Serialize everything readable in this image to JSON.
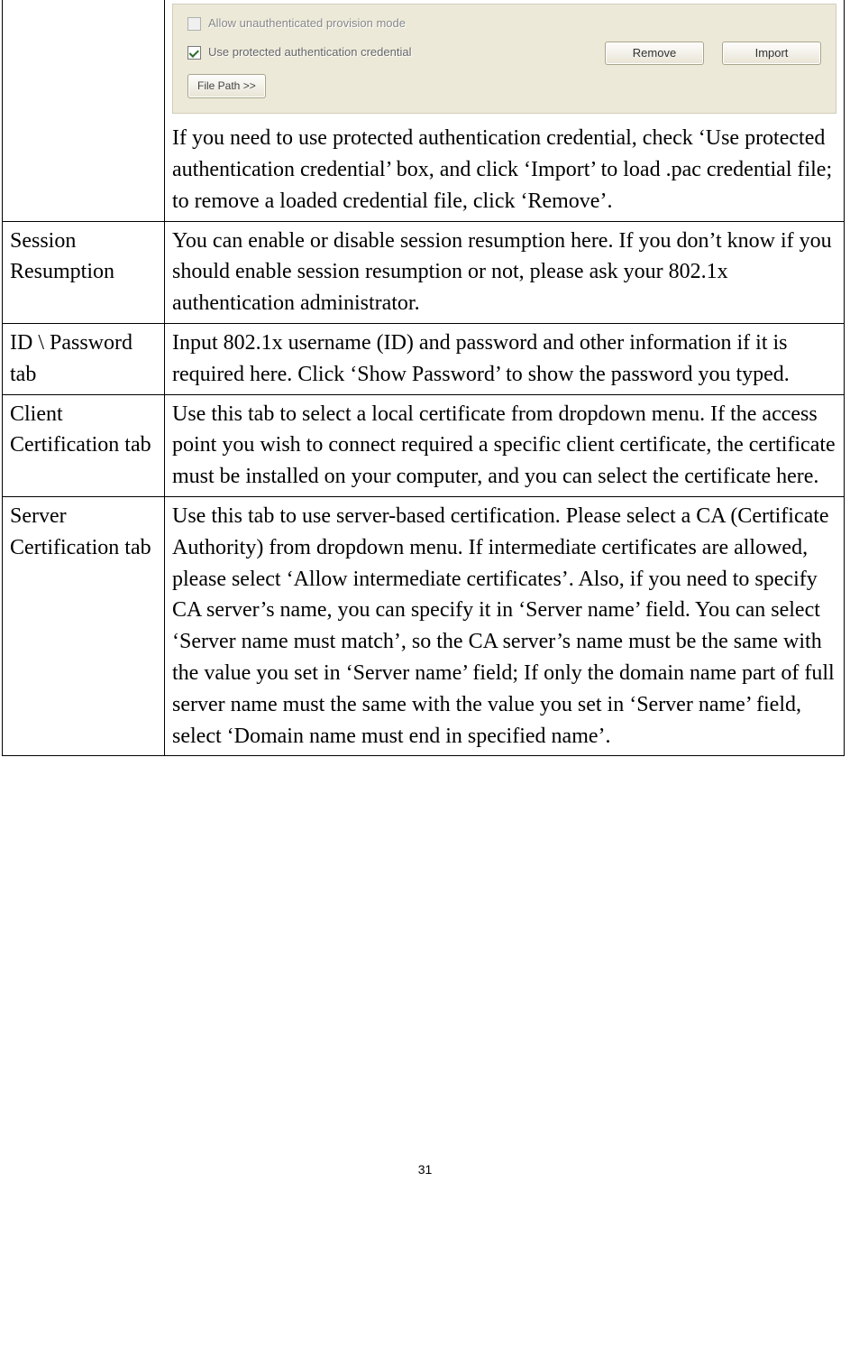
{
  "ui_panel": {
    "checkbox1_label": "Allow unauthenticated provision mode",
    "checkbox2_label": "Use protected authentication credential",
    "remove_btn": "Remove",
    "import_btn": "Import",
    "filepath_btn": "File Path >>"
  },
  "rows": {
    "row0_label": "",
    "row0_desc": "If you need to use protected authentication credential, check ‘Use protected authentication credential’ box, and click ‘Import’ to load .pac credential file; to remove a loaded credential file, click ‘Remove’.",
    "row1_label": "Session Resumption",
    "row1_desc": "You can enable or disable session resumption here. If you don’t know if you should enable session resumption or not, please ask your 802.1x authentication administrator.",
    "row2_label": "ID \\ Password tab",
    "row2_desc": "Input 802.1x username (ID) and password and other information if it is required here. Click ‘Show Password’ to show the password you typed.",
    "row3_label": "Client Certification tab",
    "row3_desc": "Use this tab to select a local certificate from dropdown menu. If the access point you wish to connect required a specific client certificate, the certificate must be installed on your computer, and you can select the certificate here.",
    "row4_label": "Server Certification tab",
    "row4_desc": "Use this tab to use server-based certification. Please select a CA (Certificate Authority) from dropdown menu. If intermediate certificates are allowed, please select ‘Allow intermediate certificates’. Also, if you need to specify CA server’s name, you can specify it in ‘Server name’ field. You can select ‘Server name must match’, so the CA server’s name must be the same with the value you set in ‘Server name’ field; If only the domain name part of full server name must the same with the value you set in ‘Server name’ field, select ‘Domain name must end in specified name’."
  },
  "page_number": "31"
}
